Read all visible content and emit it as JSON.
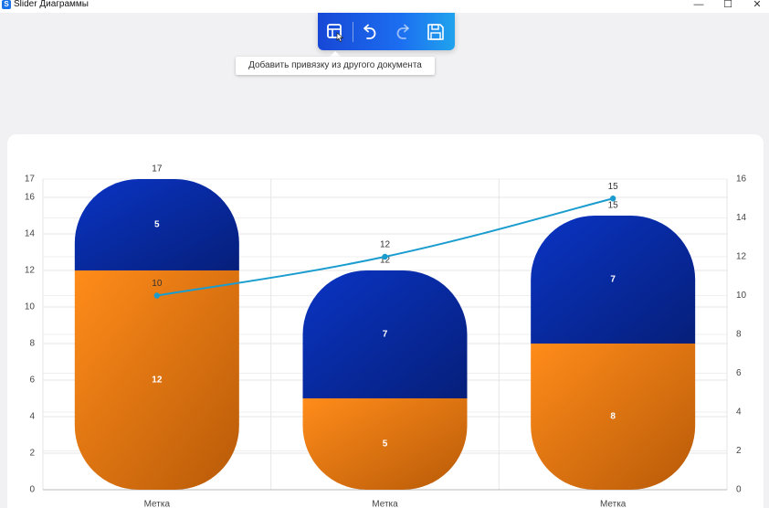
{
  "window": {
    "app_icon_letter": "S",
    "title": "Slider Диаграммы",
    "minimize_glyph": "—",
    "maximize_glyph": "☐",
    "close_glyph": "✕"
  },
  "toolbar": {
    "buttons": [
      {
        "icon": "add-link-icon"
      },
      {
        "icon": "undo-icon"
      },
      {
        "icon": "redo-icon"
      },
      {
        "icon": "save-icon"
      }
    ],
    "tooltip": "Добавить привязку из другого документа"
  },
  "chart_data": {
    "type": "bar",
    "categories": [
      "Метка",
      "Метка",
      "Метка"
    ],
    "series": [
      {
        "values": [
          12,
          5,
          8
        ],
        "color": "#f5821f",
        "label_color": "#ffffff"
      },
      {
        "values": [
          5,
          7,
          7
        ],
        "color": "#0b2fa8",
        "label_color": "#ffffff"
      }
    ],
    "totals": [
      17,
      12,
      15
    ],
    "line": {
      "values": [
        10,
        12,
        15
      ],
      "color": "#1a9ccf",
      "axis": "right"
    },
    "y_left": {
      "min": 0,
      "max": 17,
      "ticks": [
        0,
        2,
        4,
        6,
        8,
        10,
        12,
        14,
        16,
        17
      ]
    },
    "y_right": {
      "min": 0,
      "max": 16,
      "ticks": [
        0,
        2,
        4,
        6,
        8,
        10,
        12,
        14,
        16
      ]
    },
    "grid": true,
    "legend": "none"
  }
}
